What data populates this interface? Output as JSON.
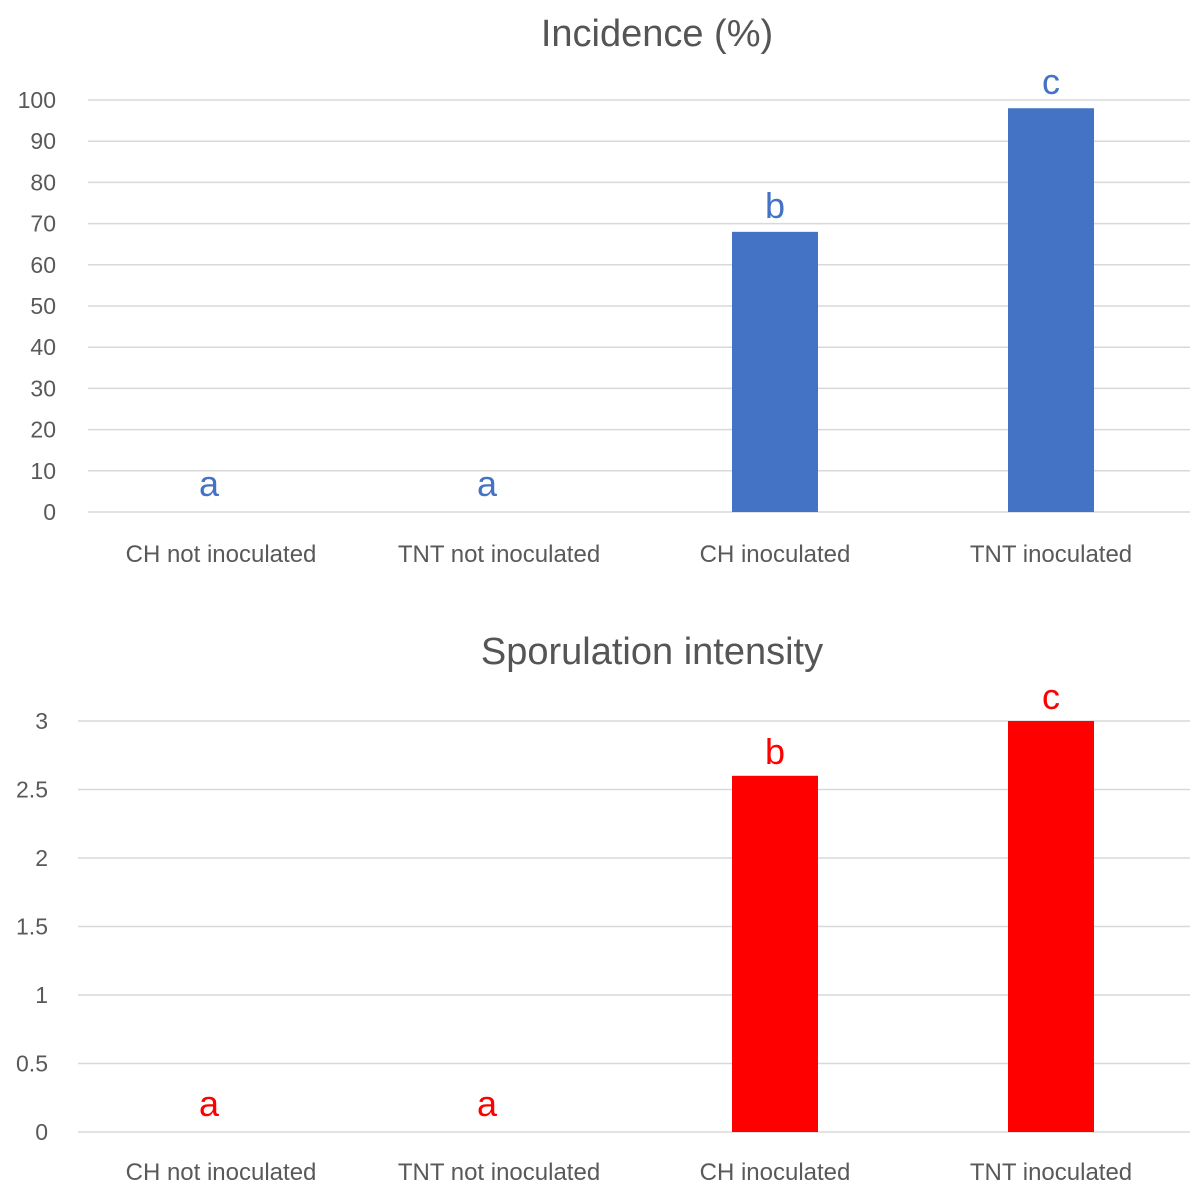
{
  "chart_data": [
    {
      "type": "bar",
      "title": "Incidence (%)",
      "categories": [
        "CH not inoculated",
        "TNT not inoculated",
        "CH inoculated",
        "TNT inoculated"
      ],
      "values": [
        0,
        0,
        68,
        98
      ],
      "data_labels": [
        "a",
        "a",
        "b",
        "c"
      ],
      "yticks": [
        "0",
        "10",
        "20",
        "30",
        "40",
        "50",
        "60",
        "70",
        "80",
        "90",
        "100"
      ],
      "ylim": [
        0,
        100
      ],
      "grid": true,
      "color": "#4472c4"
    },
    {
      "type": "bar",
      "title": "Sporulation intensity",
      "categories": [
        "CH not inoculated",
        "TNT not inoculated",
        "CH inoculated",
        "TNT inoculated"
      ],
      "values": [
        0,
        0,
        2.6,
        3
      ],
      "data_labels": [
        "a",
        "a",
        "b",
        "c"
      ],
      "yticks": [
        "0",
        "0.5",
        "1",
        "1.5",
        "2",
        "2.5",
        "3"
      ],
      "ylim": [
        0,
        3
      ],
      "grid": true,
      "color": "#ff0000"
    }
  ]
}
